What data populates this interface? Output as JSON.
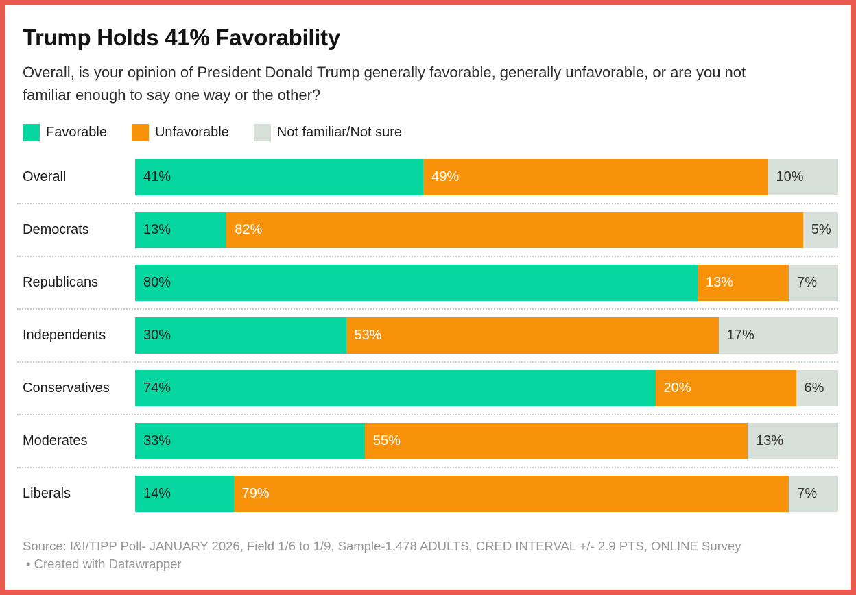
{
  "frame": {
    "border_color": "#EA5A4F",
    "background": "#ffffff"
  },
  "header": {
    "title": "Trump Holds 41% Favorability",
    "description": "Overall, is your opinion of President Donald Trump generally favorable, generally unfavorable, or are you not familiar enough to say one way or the other?"
  },
  "legend": {
    "items": [
      {
        "label": "Favorable",
        "color": "#06D6A0"
      },
      {
        "label": "Unfavorable",
        "color": "#F8920B"
      },
      {
        "label": "Not familiar/Not sure",
        "color": "#D7DFD9"
      }
    ]
  },
  "chart_data": {
    "type": "bar",
    "stacked": true,
    "orientation": "horizontal",
    "title": "Trump Holds 41% Favorability",
    "value_suffix": "%",
    "xlim": [
      0,
      100
    ],
    "grid": false,
    "legend_position": "top",
    "categories": [
      "Overall",
      "Democrats",
      "Republicans",
      "Independents",
      "Conservatives",
      "Moderates",
      "Liberals"
    ],
    "series": [
      {
        "name": "Favorable",
        "slug": "favorable",
        "color": "#06D6A0",
        "label_color": "#1d1d1d",
        "values": [
          41,
          13,
          80,
          30,
          74,
          33,
          14
        ]
      },
      {
        "name": "Unfavorable",
        "slug": "unfavorable",
        "color": "#F8920B",
        "label_color": "#ffffff",
        "values": [
          49,
          82,
          13,
          53,
          20,
          55,
          79
        ]
      },
      {
        "name": "Not familiar/Not sure",
        "slug": "not-familiar-not-sure",
        "color": "#D7DFD9",
        "label_color": "#333333",
        "values": [
          10,
          5,
          7,
          17,
          6,
          13,
          7
        ]
      }
    ]
  },
  "footer": {
    "line1": "Source: I&I/TIPP Poll- JANUARY 2026, Field 1/6 to 1/9, Sample-1,478 ADULTS, CRED INTERVAL +/- 2.9 PTS, ONLINE Survey",
    "line2": "• Created with Datawrapper"
  }
}
